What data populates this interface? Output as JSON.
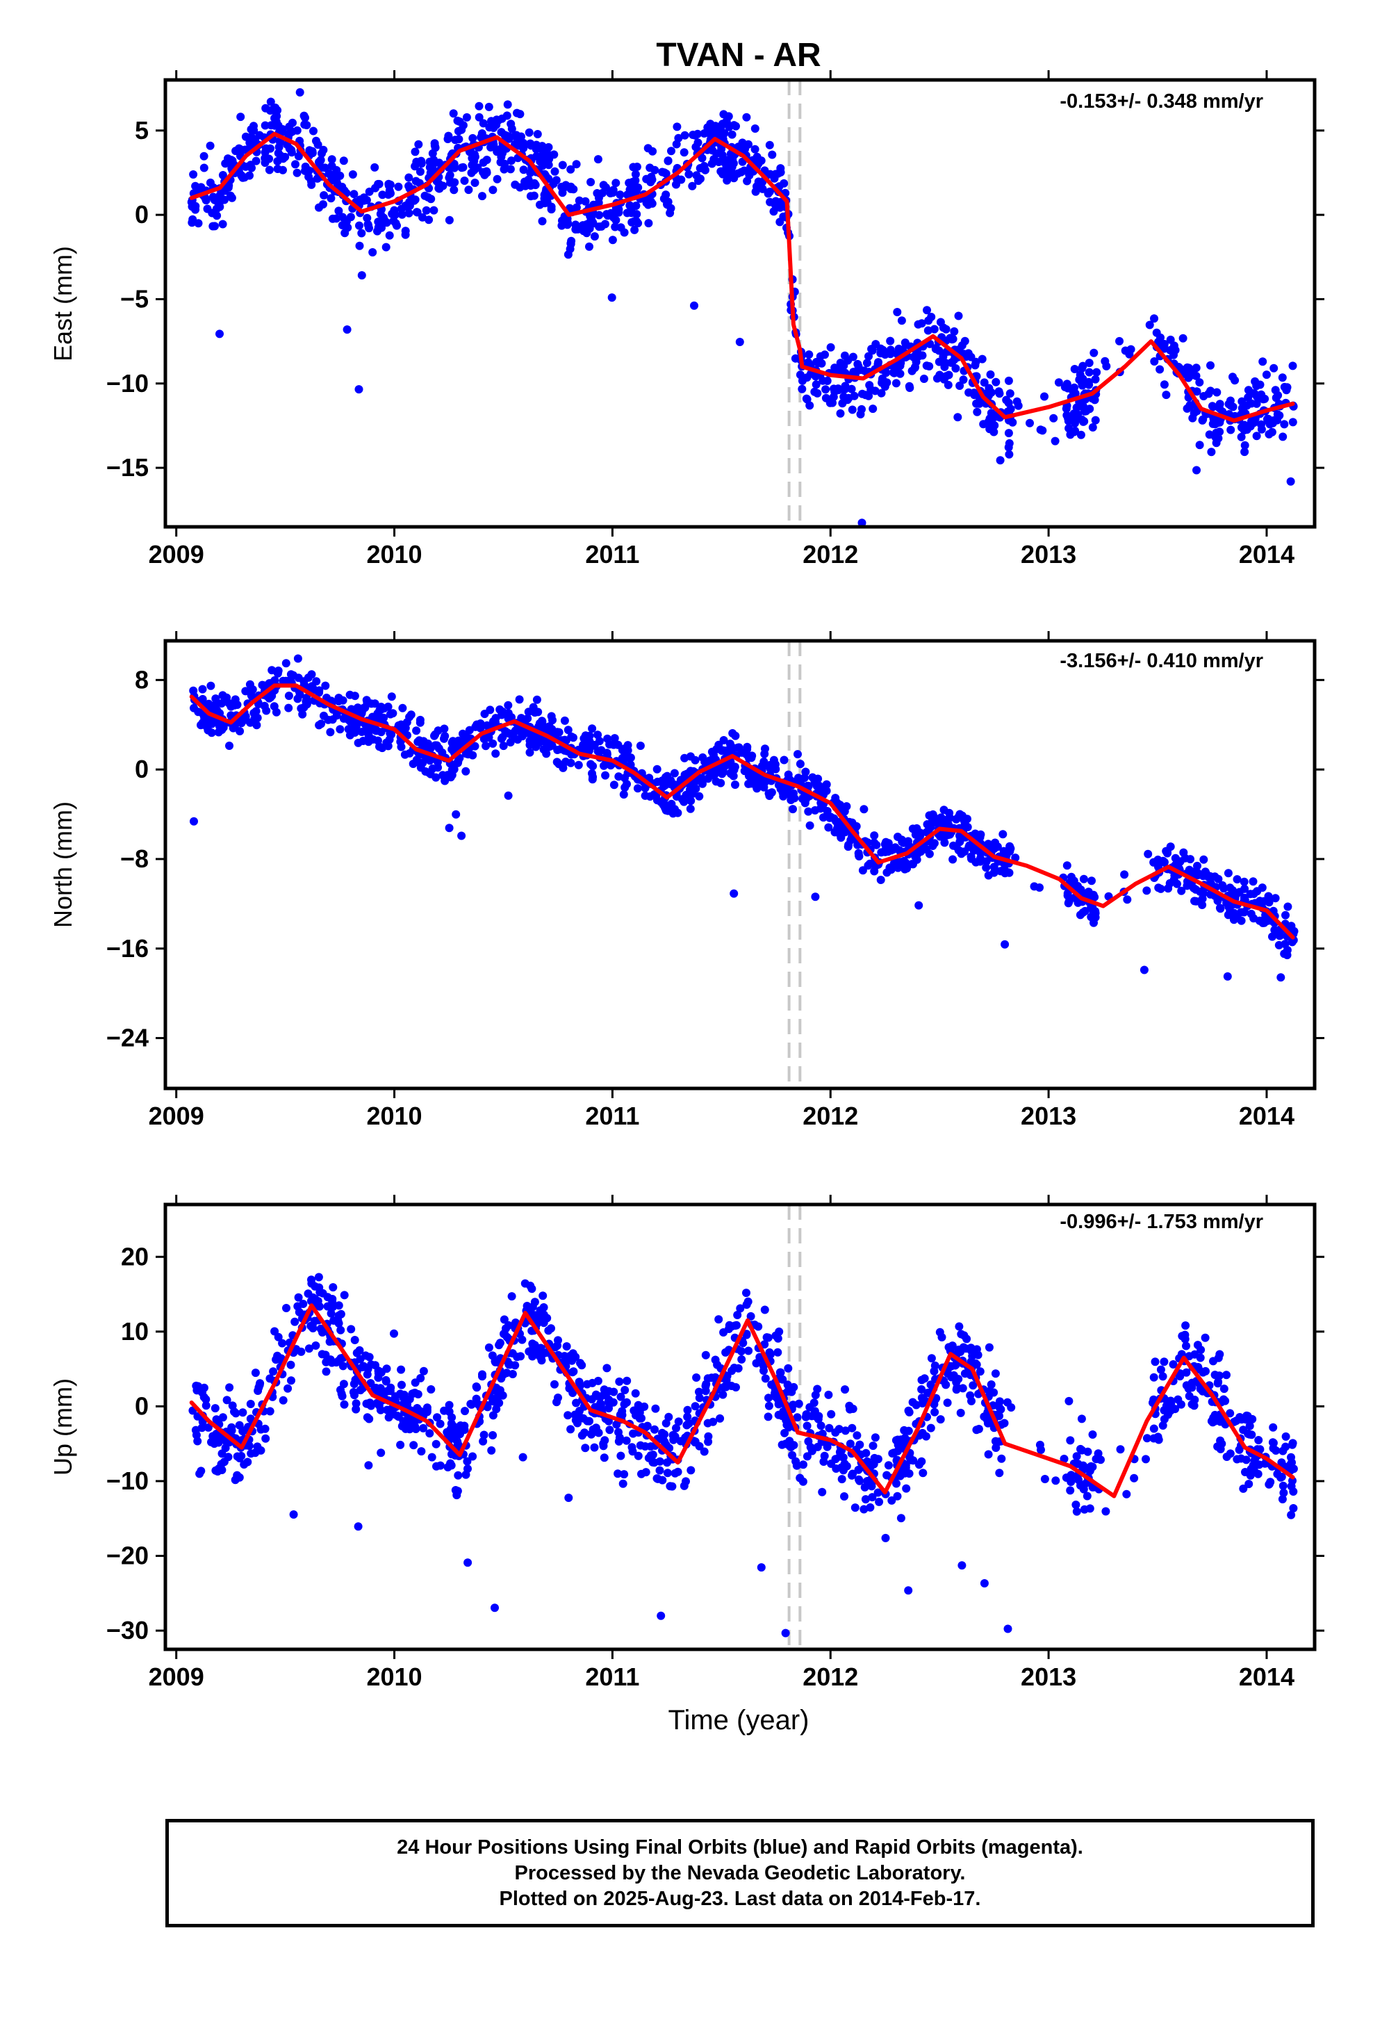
{
  "title": "TVAN - AR",
  "x_axis_label": "Time (year)",
  "caption_lines": [
    "24 Hour Positions Using Final Orbits (blue) and Rapid Orbits (magenta).",
    "Processed by the Nevada Geodetic Laboratory.",
    "Plotted on 2025-Aug-23. Last data on 2014-Feb-17."
  ],
  "colors": {
    "points": "#0000ff",
    "model": "#ff0000",
    "offset_lines": "#c8c8c8",
    "frame": "#000000"
  },
  "chart_data": [
    {
      "type": "scatter",
      "component": "east",
      "ylabel": "East (mm)",
      "rate_label": "-0.153+/- 0.348 mm/yr",
      "xlim": [
        2008.95,
        2014.22
      ],
      "ylim": [
        -18.5,
        8
      ],
      "xticks": [
        2009,
        2010,
        2011,
        2012,
        2013,
        2014
      ],
      "yticks": [
        5,
        0,
        -5,
        -10,
        -15
      ],
      "offset_lines_x": [
        2011.81,
        2011.86
      ],
      "model": {
        "x": [
          2009.07,
          2009.2,
          2009.32,
          2009.45,
          2009.55,
          2009.7,
          2009.85,
          2010.0,
          2010.15,
          2010.3,
          2010.47,
          2010.62,
          2010.8,
          2011.0,
          2011.15,
          2011.3,
          2011.47,
          2011.6,
          2011.7,
          2011.8,
          2011.805,
          2011.83,
          2011.86,
          2011.87,
          2012.0,
          2012.15,
          2012.3,
          2012.47,
          2012.6,
          2012.7,
          2012.8,
          2013.0,
          2013.2,
          2013.35,
          2013.47,
          2013.6,
          2013.7,
          2013.85,
          2014.0,
          2014.12
        ],
        "y": [
          1.0,
          1.6,
          3.5,
          4.8,
          4.2,
          1.8,
          0.2,
          0.8,
          1.8,
          3.8,
          4.6,
          3.2,
          0.0,
          0.6,
          1.2,
          2.5,
          4.5,
          3.5,
          2.2,
          0.8,
          -0.3,
          -6.5,
          -8.0,
          -9.0,
          -9.5,
          -9.7,
          -8.6,
          -7.2,
          -8.5,
          -10.8,
          -12.0,
          -11.4,
          -10.6,
          -9.0,
          -7.5,
          -9.5,
          -11.5,
          -12.2,
          -11.6,
          -11.2
        ]
      }
    },
    {
      "type": "scatter",
      "component": "north",
      "ylabel": "North (mm)",
      "rate_label": "-3.156+/- 0.410 mm/yr",
      "xlim": [
        2008.95,
        2014.22
      ],
      "ylim": [
        -28.5,
        11.5
      ],
      "xticks": [
        2009,
        2010,
        2011,
        2012,
        2013,
        2014
      ],
      "yticks": [
        8,
        0,
        -8,
        -16,
        -24
      ],
      "offset_lines_x": [
        2011.81,
        2011.86
      ],
      "model": {
        "x": [
          2009.07,
          2009.15,
          2009.25,
          2009.35,
          2009.45,
          2009.55,
          2009.7,
          2009.85,
          2010.0,
          2010.1,
          2010.25,
          2010.4,
          2010.55,
          2010.7,
          2010.85,
          2011.0,
          2011.1,
          2011.25,
          2011.4,
          2011.55,
          2011.7,
          2011.85,
          2012.0,
          2012.1,
          2012.22,
          2012.35,
          2012.5,
          2012.6,
          2012.75,
          2012.9,
          2013.05,
          2013.15,
          2013.25,
          2013.4,
          2013.55,
          2013.7,
          2013.85,
          2014.0,
          2014.12
        ],
        "y": [
          6.5,
          5.0,
          4.2,
          6.0,
          7.5,
          7.5,
          5.8,
          4.5,
          3.6,
          1.8,
          0.8,
          3.2,
          4.3,
          3.0,
          1.4,
          0.8,
          -0.3,
          -2.5,
          -0.2,
          1.2,
          -0.5,
          -1.5,
          -3.0,
          -5.5,
          -8.3,
          -7.5,
          -5.3,
          -5.5,
          -7.8,
          -8.6,
          -9.8,
          -11.5,
          -12.2,
          -10.2,
          -8.7,
          -10.2,
          -11.8,
          -12.6,
          -15.0
        ]
      }
    },
    {
      "type": "scatter",
      "component": "up",
      "ylabel": "Up (mm)",
      "rate_label": "-0.996+/- 1.753 mm/yr",
      "xlim": [
        2008.95,
        2014.22
      ],
      "ylim": [
        -32.5,
        27
      ],
      "xticks": [
        2009,
        2010,
        2011,
        2012,
        2013,
        2014
      ],
      "yticks": [
        20,
        10,
        0,
        -10,
        -20,
        -30
      ],
      "offset_lines_x": [
        2011.81,
        2011.86
      ],
      "model": {
        "x": [
          2009.07,
          2009.15,
          2009.3,
          2009.45,
          2009.62,
          2009.75,
          2009.9,
          2010.05,
          2010.15,
          2010.3,
          2010.45,
          2010.6,
          2010.75,
          2010.9,
          2011.05,
          2011.15,
          2011.3,
          2011.45,
          2011.62,
          2011.75,
          2011.85,
          2012.0,
          2012.1,
          2012.25,
          2012.4,
          2012.55,
          2012.65,
          2012.8,
          2012.95,
          2013.1,
          2013.2,
          2013.3,
          2013.45,
          2013.62,
          2013.75,
          2013.9,
          2014.0,
          2014.12
        ],
        "y": [
          0.5,
          -2.0,
          -5.5,
          3.0,
          13.5,
          8.0,
          1.5,
          -0.5,
          -2.0,
          -6.5,
          3.0,
          12.5,
          6.0,
          -0.5,
          -2.0,
          -3.5,
          -7.5,
          1.0,
          11.5,
          3.5,
          -3.5,
          -4.5,
          -6.0,
          -11.5,
          -3.0,
          7.0,
          5.0,
          -5.0,
          -6.5,
          -8.0,
          -10.0,
          -12.0,
          -2.0,
          6.5,
          1.5,
          -5.5,
          -7.0,
          -9.5
        ]
      }
    }
  ]
}
